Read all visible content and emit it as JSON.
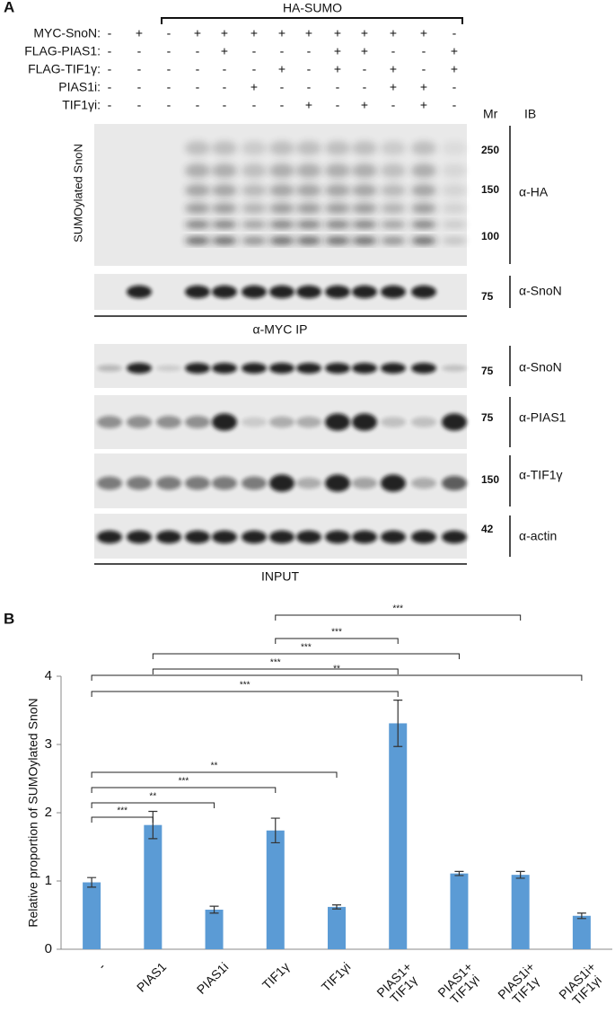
{
  "panel_a": {
    "label": "A",
    "header": "HA-SUMO",
    "treatments": [
      {
        "name": "MYC-SnoN:",
        "marks": [
          "-",
          "+",
          "-",
          "+",
          "+",
          "+",
          "+",
          "+",
          "+",
          "+",
          "+",
          "+",
          "-"
        ]
      },
      {
        "name": "FLAG-PIAS1:",
        "marks": [
          "-",
          "-",
          "-",
          "-",
          "+",
          "-",
          "-",
          "-",
          "+",
          "+",
          "-",
          "-",
          "+"
        ]
      },
      {
        "name": "FLAG-TIF1γ:",
        "marks": [
          "-",
          "-",
          "-",
          "-",
          "-",
          "-",
          "+",
          "-",
          "+",
          "-",
          "+",
          "-",
          "+"
        ]
      },
      {
        "name": "PIAS1i:",
        "marks": [
          "-",
          "-",
          "-",
          "-",
          "-",
          "+",
          "-",
          "-",
          "-",
          "-",
          "+",
          "+",
          "-"
        ]
      },
      {
        "name": "TIF1γi:",
        "marks": [
          "-",
          "-",
          "-",
          "-",
          "-",
          "-",
          "-",
          "+",
          "-",
          "+",
          "-",
          "+",
          "-"
        ]
      }
    ],
    "mr_header": "Mr",
    "ib_header": "IB",
    "side_label": "SUMOylated SnoN",
    "blots": [
      {
        "ib": "α-HA",
        "markers": [
          250,
          150,
          100
        ]
      },
      {
        "ib": "α-SnoN",
        "markers": [
          75
        ]
      },
      {
        "ib": "α-SnoN",
        "markers": [
          75
        ]
      },
      {
        "ib": "α-PIAS1",
        "markers": [
          75
        ]
      },
      {
        "ib": "α-TIF1γ",
        "markers": [
          150
        ]
      },
      {
        "ib": "α-actin",
        "markers": [
          42
        ]
      }
    ],
    "ip_label": "α-MYC IP",
    "input_label": "INPUT"
  },
  "chart_data": {
    "type": "bar",
    "panel_label": "B",
    "y_label": "Relative proportion of SUMOylated SnoN",
    "categories": [
      "-",
      "PIAS1",
      "PIAS1i",
      "TIF1γ",
      "TIF1γi",
      "PIAS1+\nTIF1γ",
      "PIAS1+\nTIF1γi",
      "PIAS1i+\nTIF1γ",
      "PIAS1i+\nTIF1γi"
    ],
    "values": [
      0.98,
      1.82,
      0.58,
      1.74,
      0.62,
      3.31,
      1.11,
      1.09,
      0.49
    ],
    "errors": [
      0.07,
      0.2,
      0.05,
      0.18,
      0.03,
      0.34,
      0.03,
      0.05,
      0.04
    ],
    "color": "#5b9bd5",
    "ylim": [
      0,
      4
    ],
    "yticks": [
      0,
      1,
      2,
      3,
      4
    ],
    "grid": false,
    "significance": [
      {
        "from": 3,
        "to": 7,
        "label": "***"
      },
      {
        "from": 3,
        "to": 5,
        "label": "***"
      },
      {
        "from": 1,
        "to": 6,
        "label": "***"
      },
      {
        "from": 1,
        "to": 5,
        "label": "***"
      },
      {
        "from": 0,
        "to": 8,
        "label": "**"
      },
      {
        "from": 0,
        "to": 5,
        "label": "***"
      },
      {
        "from": 0,
        "to": 4,
        "label": "**"
      },
      {
        "from": 0,
        "to": 3,
        "label": "***"
      },
      {
        "from": 0,
        "to": 2,
        "label": "**"
      },
      {
        "from": 0,
        "to": 1,
        "label": "***"
      }
    ]
  }
}
